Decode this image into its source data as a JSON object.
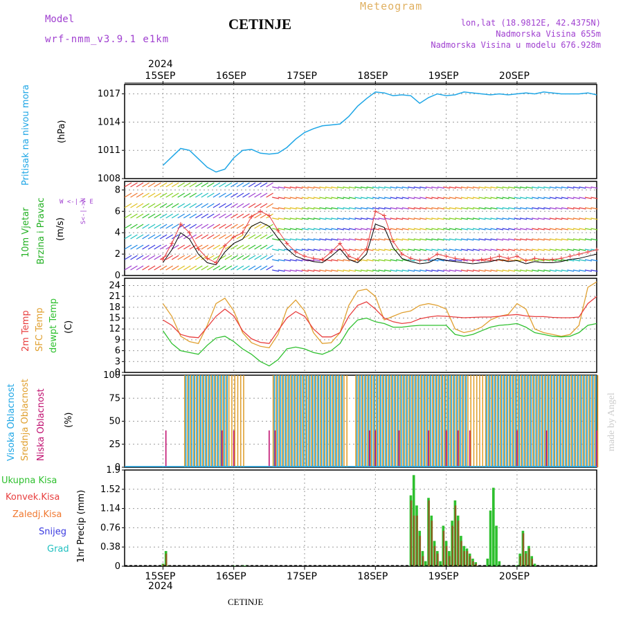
{
  "header": {
    "model_label": "Model",
    "model_value": "wrf-nmm_v3.9.1 e1km",
    "station": "CETINJE",
    "product": "Meteogram",
    "lonlat": "lon,lat (18.9812E, 42.4375N)",
    "elev": "Nadmorska Visina 655m",
    "elev_model": "Nadmorska Visina u modelu 676.928m",
    "footer_station": "CETINJE",
    "credit": "made by Angel",
    "year": "2024"
  },
  "colors": {
    "pressure": "#1ea6e6",
    "wind_label": "#22b022",
    "temp2m": "#e83e3e",
    "sfc": "#e0a030",
    "dewpt": "#2ec02e",
    "high_cloud": "#1ea6e6",
    "mid_cloud": "#e0a030",
    "low_cloud": "#c01070",
    "total_precip": "#2ec02e",
    "conv": "#e83e3e",
    "frozen": "#f07830",
    "snow": "#3a3ae0",
    "hail": "#20c0c0",
    "wind_dir": "#a040d0"
  },
  "chart_data": [
    {
      "type": "line",
      "panel": "pressure",
      "ylabel": [
        "Pritisak na nivou mora",
        "(hPa)"
      ],
      "x_ticks": [
        "15SEP",
        "16SEP",
        "17SEP",
        "18SEP",
        "19SEP",
        "20SEP"
      ],
      "yticks": [
        "1008",
        "1011",
        "1014",
        "1017"
      ],
      "ylim": [
        1008,
        1018
      ],
      "x_hours": [
        0,
        3,
        6,
        9,
        12,
        15,
        18,
        21,
        24,
        27,
        30,
        33,
        36,
        39,
        42,
        45,
        48,
        51,
        54,
        57,
        60,
        63,
        66,
        69,
        72,
        75,
        78,
        81,
        84,
        87,
        90,
        93,
        96,
        99,
        102,
        105,
        108,
        111,
        114,
        117,
        120,
        123,
        126,
        129,
        132,
        135,
        138,
        141,
        144,
        147
      ],
      "series": [
        {
          "values": [
            1009.4,
            1010.3,
            1011.2,
            1011.0,
            1010.1,
            1009.2,
            1008.7,
            1009.0,
            1010.2,
            1011.0,
            1011.1,
            1010.7,
            1010.6,
            1010.7,
            1011.3,
            1012.2,
            1012.9,
            1013.3,
            1013.6,
            1013.7,
            1013.8,
            1014.6,
            1015.7,
            1016.5,
            1017.2,
            1017.1,
            1016.8,
            1016.9,
            1016.8,
            1016.0,
            1016.6,
            1017.0,
            1016.8,
            1016.9,
            1017.2,
            1017.1,
            1017.0,
            1016.9,
            1017.0,
            1016.9,
            1017.0,
            1017.1,
            1017.0,
            1017.2,
            1017.1,
            1017.0,
            1017.0,
            1017.0,
            1017.1,
            1016.9
          ]
        }
      ]
    },
    {
      "type": "line",
      "panel": "wind",
      "ylabel": [
        "10m Vjetar",
        "Brzina i Pravac",
        "(m/s)"
      ],
      "compass": "W <-|-> E",
      "compass_ns": "S<-|->N",
      "yticks": [
        "0",
        "2",
        "4",
        "6",
        "8"
      ],
      "ylim": [
        0,
        8.8
      ],
      "x_hours": [
        0,
        3,
        6,
        9,
        12,
        15,
        18,
        21,
        24,
        27,
        30,
        33,
        36,
        39,
        42,
        45,
        48,
        51,
        54,
        57,
        60,
        63,
        66,
        69,
        72,
        75,
        78,
        81,
        84,
        87,
        90,
        93,
        96,
        99,
        102,
        105,
        108,
        111,
        114,
        117,
        120,
        123,
        126,
        129,
        132,
        135,
        138,
        141,
        144,
        147
      ],
      "series": [
        {
          "values": [
            1.5,
            3.0,
            4.8,
            4.0,
            2.5,
            1.6,
            1.2,
            2.8,
            3.6,
            4.0,
            5.5,
            6.0,
            5.6,
            4.2,
            3.0,
            2.2,
            1.8,
            1.6,
            1.5,
            2.2,
            3.0,
            1.8,
            1.5,
            2.5,
            6.0,
            5.6,
            3.2,
            2.0,
            1.6,
            1.4,
            1.5,
            2.0,
            1.8,
            1.6,
            1.5,
            1.4,
            1.5,
            1.6,
            1.8,
            1.6,
            1.8,
            1.4,
            1.6,
            1.5,
            1.5,
            1.6,
            1.8,
            2.0,
            2.2,
            2.4
          ]
        },
        {
          "values": [
            1.2,
            2.4,
            4.0,
            3.4,
            2.0,
            1.2,
            1.0,
            2.2,
            3.0,
            3.4,
            4.6,
            5.0,
            4.6,
            3.5,
            2.5,
            1.8,
            1.5,
            1.3,
            1.2,
            1.8,
            2.5,
            1.5,
            1.2,
            2.0,
            4.8,
            4.5,
            2.6,
            1.6,
            1.3,
            1.1,
            1.2,
            1.6,
            1.4,
            1.3,
            1.2,
            1.1,
            1.2,
            1.3,
            1.5,
            1.3,
            1.4,
            1.1,
            1.3,
            1.2,
            1.2,
            1.3,
            1.5,
            1.6,
            1.8,
            2.0
          ]
        }
      ]
    },
    {
      "type": "line",
      "panel": "temperature",
      "ylabel": [
        "2m Temp",
        "SFC Temp",
        "dewpt Temp",
        "(C)"
      ],
      "yticks": [
        "0",
        "3",
        "6",
        "9",
        "12",
        "15",
        "18",
        "21",
        "24"
      ],
      "ylim": [
        0,
        26
      ],
      "x_hours": [
        0,
        3,
        6,
        9,
        12,
        15,
        18,
        21,
        24,
        27,
        30,
        33,
        36,
        39,
        42,
        45,
        48,
        51,
        54,
        57,
        60,
        63,
        66,
        69,
        72,
        75,
        78,
        81,
        84,
        87,
        90,
        93,
        96,
        99,
        102,
        105,
        108,
        111,
        114,
        117,
        120,
        123,
        126,
        129,
        132,
        135,
        138,
        141,
        144,
        147
      ],
      "series": [
        {
          "name": "2m Temp",
          "values": [
            14.5,
            13.0,
            10.5,
            9.8,
            9.6,
            12.5,
            15.5,
            17.5,
            15.6,
            11.5,
            9.3,
            8.3,
            8.0,
            11.5,
            15.0,
            16.8,
            15.5,
            12.0,
            9.8,
            9.8,
            11.0,
            15.5,
            18.5,
            19.5,
            17.5,
            15.0,
            14.0,
            13.5,
            13.8,
            14.8,
            15.3,
            15.6,
            15.5,
            15.3,
            15.1,
            15.2,
            15.3,
            15.3,
            15.5,
            15.8,
            16.0,
            15.6,
            15.4,
            15.4,
            15.2,
            15.1,
            15.1,
            15.3,
            19.0,
            21.0
          ]
        },
        {
          "name": "SFC Temp",
          "values": [
            19.0,
            15.5,
            10.0,
            8.5,
            8.0,
            13.0,
            19.0,
            20.5,
            17.0,
            11.0,
            8.2,
            7.2,
            6.8,
            10.5,
            17.5,
            20.0,
            17.0,
            11.0,
            8.0,
            8.2,
            11.0,
            18.5,
            22.5,
            23.0,
            21.0,
            14.5,
            15.5,
            16.5,
            17.0,
            18.5,
            19.0,
            18.5,
            17.5,
            12.0,
            11.0,
            11.5,
            12.5,
            14.5,
            15.5,
            16.0,
            19.0,
            17.5,
            12.0,
            11.0,
            10.5,
            10.0,
            10.5,
            13.0,
            23.5,
            25.0
          ]
        },
        {
          "name": "dewpt Temp",
          "values": [
            11.5,
            8.0,
            6.0,
            5.5,
            5.0,
            7.5,
            9.5,
            10.0,
            8.5,
            6.5,
            5.0,
            3.0,
            1.8,
            3.5,
            6.5,
            7.0,
            6.5,
            5.5,
            5.0,
            6.0,
            8.0,
            12.0,
            14.5,
            15.0,
            14.0,
            13.5,
            12.5,
            12.5,
            12.8,
            13.0,
            13.0,
            13.0,
            13.0,
            10.5,
            10.0,
            10.5,
            11.5,
            12.5,
            13.0,
            13.2,
            13.5,
            12.5,
            11.0,
            10.5,
            10.0,
            9.8,
            10.0,
            11.0,
            13.0,
            13.5
          ]
        }
      ]
    },
    {
      "type": "bar",
      "panel": "clouds",
      "ylabel": [
        "Visoka Oblacnost",
        "Srednja Oblacnost",
        "Niska Oblacnost",
        "(%)"
      ],
      "yticks": [
        "0",
        "25",
        "50",
        "75",
        "100"
      ],
      "ylim": [
        0,
        100
      ],
      "series": [
        {
          "name": "Visoka Oblacnost",
          "x_hours": [
            8,
            9,
            10,
            11,
            12,
            13,
            14,
            15,
            16,
            17,
            18,
            19,
            20,
            21,
            22,
            38,
            39,
            40,
            41,
            42,
            43,
            44,
            45,
            46,
            47,
            48,
            49,
            50,
            51,
            52,
            53,
            54,
            55,
            56,
            57,
            58,
            59,
            60,
            61,
            66,
            67,
            68,
            69,
            70,
            71,
            72,
            73,
            74,
            75,
            76,
            77,
            78,
            79,
            80,
            81,
            82,
            83,
            84,
            85,
            86,
            87,
            88,
            89,
            90,
            91,
            92,
            93,
            94,
            95,
            96,
            97,
            98,
            99,
            100,
            101,
            102,
            103,
            110,
            111,
            112,
            113,
            114,
            115,
            116,
            117,
            118,
            119,
            120,
            121,
            122,
            123,
            124,
            125,
            126,
            127,
            128,
            129,
            130,
            131,
            132,
            133,
            134,
            135,
            136,
            137,
            138,
            139,
            140,
            141,
            142,
            143,
            144,
            145,
            146,
            147
          ],
          "value": 100
        },
        {
          "name": "Srednja Oblacnost",
          "x_hours": [
            7,
            8,
            9,
            10,
            11,
            12,
            13,
            14,
            15,
            16,
            17,
            18,
            19,
            20,
            21,
            22,
            23,
            24,
            25,
            26,
            27,
            37,
            38,
            39,
            40,
            41,
            42,
            43,
            44,
            45,
            46,
            47,
            48,
            49,
            50,
            51,
            52,
            53,
            54,
            55,
            56,
            57,
            58,
            59,
            60,
            61,
            62,
            65,
            66,
            67,
            68,
            69,
            70,
            71,
            72,
            73,
            74,
            75,
            76,
            77,
            78,
            79,
            80,
            81,
            82,
            83,
            84,
            85,
            86,
            87,
            88,
            89,
            90,
            91,
            92,
            93,
            94,
            95,
            96,
            97,
            98,
            99,
            100,
            101,
            102,
            103,
            104,
            105,
            106,
            107,
            108,
            109,
            110,
            111,
            112,
            113,
            114,
            115,
            116,
            117,
            118,
            119,
            120,
            121,
            122,
            123,
            124,
            125,
            126,
            127,
            128,
            129,
            130,
            131,
            132,
            133,
            134,
            135,
            136,
            137,
            138,
            139,
            140,
            141,
            142,
            143,
            144,
            145,
            146,
            147
          ],
          "value": 100
        },
        {
          "name": "Niska Oblacnost",
          "x_hours": [
            1,
            20,
            24,
            36,
            38,
            70,
            72,
            80,
            90,
            96,
            100,
            104,
            120,
            130,
            147
          ],
          "value": 40
        }
      ]
    },
    {
      "type": "bar",
      "panel": "precip",
      "ylabel": [
        "1hr Precip (mm)"
      ],
      "legend": [
        "Ukupna Kisa",
        "Konvek.Kisa",
        "Zaledj.Kisa",
        "Snijeg",
        "Grad"
      ],
      "yticks": [
        "0",
        "0.38",
        "0.76",
        "1.14",
        "1.52",
        "1.9"
      ],
      "ylim": [
        0,
        1.9
      ],
      "x_hours": [
        0,
        1,
        2,
        24,
        27,
        28,
        84,
        85,
        86,
        87,
        88,
        89,
        90,
        91,
        92,
        93,
        94,
        95,
        96,
        97,
        98,
        99,
        100,
        101,
        102,
        103,
        104,
        105,
        106,
        110,
        111,
        112,
        113,
        114,
        120,
        121,
        122,
        123,
        124,
        125,
        126
      ],
      "series": [
        {
          "name": "Ukupna Kisa",
          "values": [
            0.05,
            0.3,
            0.02,
            0.01,
            0.02,
            0.01,
            1.4,
            1.8,
            1.2,
            0.7,
            0.3,
            0.1,
            1.35,
            1.0,
            0.5,
            0.3,
            0.1,
            0.8,
            0.5,
            0.3,
            0.9,
            1.3,
            1.0,
            0.6,
            0.4,
            0.35,
            0.25,
            0.15,
            0.08,
            0.15,
            1.1,
            1.55,
            0.8,
            0.1,
            0.02,
            0.25,
            0.7,
            0.3,
            0.4,
            0.2,
            0.05
          ]
        },
        {
          "name": "Konvek.Kisa",
          "values": [
            0.04,
            0.25,
            0.01,
            0.0,
            0.0,
            0.0,
            1.3,
            1.0,
            1.0,
            0.6,
            0.2,
            0.0,
            1.3,
            0.9,
            0.4,
            0.25,
            0.0,
            0.7,
            0.4,
            0.2,
            0.8,
            1.2,
            0.9,
            0.5,
            0.3,
            0.3,
            0.2,
            0.1,
            0.05,
            0.0,
            0.0,
            0.0,
            0.0,
            0.0,
            0.0,
            0.2,
            0.65,
            0.25,
            0.35,
            0.15,
            0.0
          ]
        }
      ]
    }
  ]
}
